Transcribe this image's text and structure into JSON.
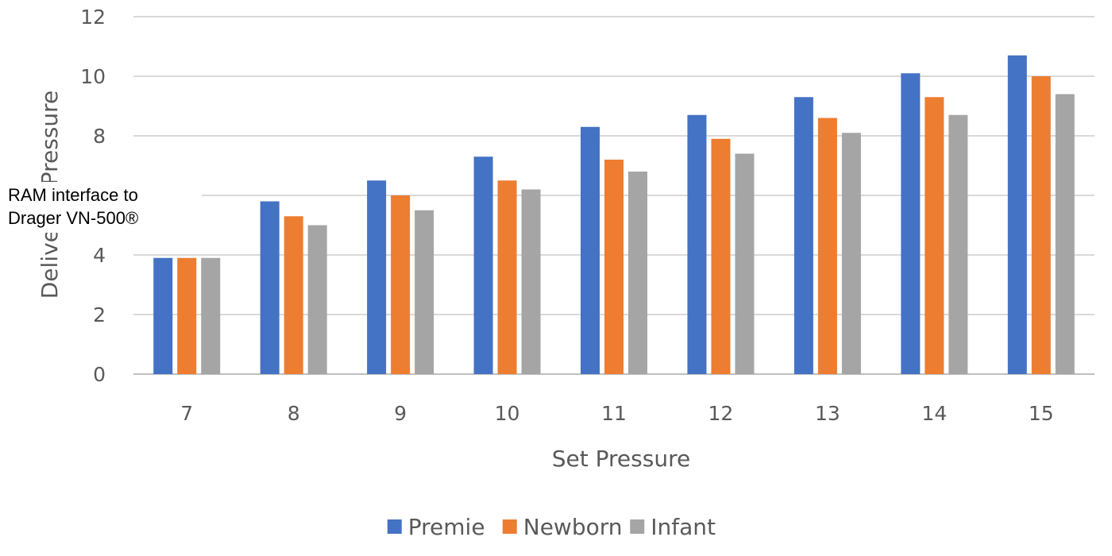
{
  "chart_data": {
    "type": "bar",
    "title": "",
    "xlabel": "Set Pressure",
    "ylabel": "Delivered Pressure",
    "categories": [
      "7",
      "8",
      "9",
      "10",
      "11",
      "12",
      "13",
      "14",
      "15"
    ],
    "series": [
      {
        "name": "Premie",
        "color": "#4472C4",
        "values": [
          3.9,
          5.8,
          6.5,
          7.3,
          8.3,
          8.7,
          9.3,
          10.1,
          10.7
        ]
      },
      {
        "name": "Newborn",
        "color": "#ED7D31",
        "values": [
          3.9,
          5.3,
          6.0,
          6.5,
          7.2,
          7.9,
          8.6,
          9.3,
          10.0
        ]
      },
      {
        "name": "Infant",
        "color": "#A5A5A5",
        "values": [
          3.9,
          5.0,
          5.5,
          6.2,
          6.8,
          7.4,
          8.1,
          8.7,
          9.4
        ]
      }
    ],
    "ylim": [
      0,
      12
    ],
    "yticks": [
      0,
      2,
      4,
      6,
      8,
      10,
      12
    ],
    "grid": true,
    "legend_position": "bottom"
  },
  "overlay_label": {
    "line1": "RAM interface to",
    "line2": "Drager VN-500®"
  }
}
